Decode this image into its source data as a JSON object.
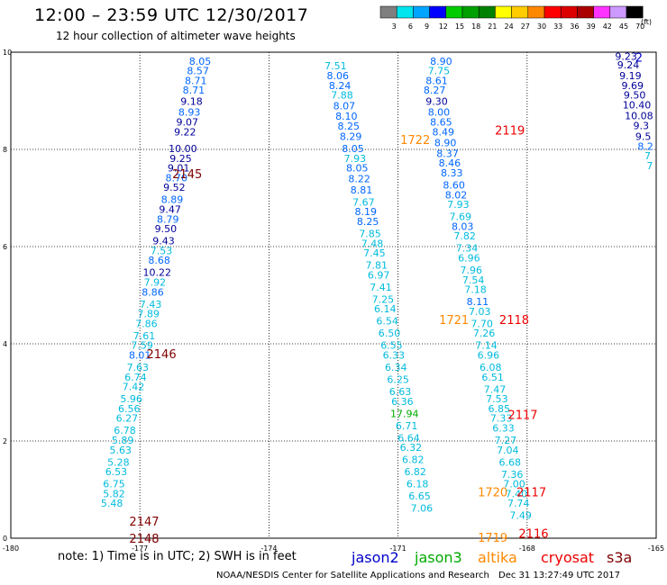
{
  "header": {
    "title": "12:00 – 23:59 UTC 12/30/2017",
    "subtitle": "12 hour collection of altimeter wave heights"
  },
  "color_scale": {
    "units": "(ft)",
    "bins": [
      {
        "label": "3",
        "color": "#7f7f7f"
      },
      {
        "label": "6",
        "color": "#00e5ee"
      },
      {
        "label": "9",
        "color": "#00a5ff"
      },
      {
        "label": "12",
        "color": "#0000ff"
      },
      {
        "label": "15",
        "color": "#00cc00"
      },
      {
        "label": "18",
        "color": "#00a000"
      },
      {
        "label": "21",
        "color": "#008000"
      },
      {
        "label": "24",
        "color": "#ffff00"
      },
      {
        "label": "27",
        "color": "#ffcc00"
      },
      {
        "label": "30",
        "color": "#ff8800"
      },
      {
        "label": "33",
        "color": "#ff0000"
      },
      {
        "label": "36",
        "color": "#dd0000"
      },
      {
        "label": "39",
        "color": "#aa0000"
      },
      {
        "label": "42",
        "color": "#ff33ff"
      },
      {
        "label": "45",
        "color": "#cc99ff"
      },
      {
        "label": "70",
        "color": "#000000"
      }
    ]
  },
  "colors": {
    "jason2": "#0000cc",
    "jason3": "#00aa00",
    "altika": "#ff8800",
    "cryosat": "#ee0000",
    "s3a": "#800000",
    "low": "#00bbdd",
    "mid": "#0066ff",
    "high": "#000099"
  },
  "chart_data": {
    "type": "scatter",
    "title": "12:00 – 23:59 UTC 12/30/2017",
    "subtitle": "12 hour collection of altimeter wave heights",
    "xlim": [
      -180,
      -165
    ],
    "ylim": [
      0,
      10
    ],
    "x_ticks": [
      "-180",
      "-177",
      "-174",
      "-171",
      "-168",
      "-165"
    ],
    "y_ticks": [
      "0",
      "2",
      "4",
      "6",
      "8",
      "10"
    ],
    "grid": true,
    "tracks": [
      {
        "satellite": "s3a",
        "passes": [
          {
            "label": "2145",
            "x": -175.9,
            "y": 7.5
          },
          {
            "label": "2146",
            "x": -176.5,
            "y": 3.8
          },
          {
            "label": "2147",
            "x": -176.9,
            "y": 0.35
          },
          {
            "label": "2148",
            "x": -176.9,
            "y": 0.0
          }
        ],
        "points": [
          {
            "x": -175.6,
            "y": 9.8,
            "v": "8.05"
          },
          {
            "x": -175.65,
            "y": 9.6,
            "v": "8.57"
          },
          {
            "x": -175.7,
            "y": 9.4,
            "v": "8.71"
          },
          {
            "x": -175.75,
            "y": 9.2,
            "v": "8.71"
          },
          {
            "x": -175.8,
            "y": 8.97,
            "v": "9.18"
          },
          {
            "x": -175.85,
            "y": 8.75,
            "v": "8.93"
          },
          {
            "x": -175.9,
            "y": 8.55,
            "v": "9.07"
          },
          {
            "x": -175.95,
            "y": 8.34,
            "v": "9.22"
          },
          {
            "x": -176.0,
            "y": 8.0,
            "v": "10.00"
          },
          {
            "x": -176.05,
            "y": 7.8,
            "v": "9.25"
          },
          {
            "x": -176.1,
            "y": 7.6,
            "v": "9.01"
          },
          {
            "x": -176.15,
            "y": 7.4,
            "v": "8.70"
          },
          {
            "x": -176.2,
            "y": 7.2,
            "v": "9.52"
          },
          {
            "x": -176.25,
            "y": 6.95,
            "v": "8.89"
          },
          {
            "x": -176.3,
            "y": 6.75,
            "v": "9.47"
          },
          {
            "x": -176.35,
            "y": 6.55,
            "v": "8.79"
          },
          {
            "x": -176.4,
            "y": 6.35,
            "v": "9.50"
          },
          {
            "x": -176.45,
            "y": 6.1,
            "v": "9.43"
          },
          {
            "x": -176.5,
            "y": 5.9,
            "v": "7.53"
          },
          {
            "x": -176.55,
            "y": 5.7,
            "v": "8.68"
          },
          {
            "x": -176.6,
            "y": 5.45,
            "v": "10.22"
          },
          {
            "x": -176.65,
            "y": 5.25,
            "v": "7.92"
          },
          {
            "x": -176.7,
            "y": 5.05,
            "v": "8.86"
          },
          {
            "x": -176.75,
            "y": 4.8,
            "v": "7.43"
          },
          {
            "x": -176.8,
            "y": 4.6,
            "v": "7.89"
          },
          {
            "x": -176.85,
            "y": 4.4,
            "v": "7.86"
          },
          {
            "x": -176.9,
            "y": 4.15,
            "v": "7.61"
          },
          {
            "x": -176.95,
            "y": 3.95,
            "v": "7.59"
          },
          {
            "x": -177.0,
            "y": 3.75,
            "v": "8.01"
          },
          {
            "x": -177.05,
            "y": 3.5,
            "v": "7.63"
          },
          {
            "x": -177.1,
            "y": 3.3,
            "v": "6.74"
          },
          {
            "x": -177.15,
            "y": 3.1,
            "v": "7.42"
          },
          {
            "x": -177.2,
            "y": 2.85,
            "v": "5.96"
          },
          {
            "x": -177.25,
            "y": 2.65,
            "v": "6.56"
          },
          {
            "x": -177.3,
            "y": 2.45,
            "v": "6.27"
          },
          {
            "x": -177.35,
            "y": 2.2,
            "v": "6.78"
          },
          {
            "x": -177.4,
            "y": 2.0,
            "v": "5.89"
          },
          {
            "x": -177.45,
            "y": 1.8,
            "v": "5.63"
          },
          {
            "x": -177.5,
            "y": 1.55,
            "v": "5.28"
          },
          {
            "x": -177.55,
            "y": 1.35,
            "v": "6.53"
          },
          {
            "x": -177.6,
            "y": 1.1,
            "v": "6.75"
          },
          {
            "x": -177.6,
            "y": 0.9,
            "v": "5.82"
          },
          {
            "x": -177.65,
            "y": 0.7,
            "v": "5.48"
          }
        ]
      },
      {
        "satellite": "altika",
        "passes": [
          {
            "label": "1722",
            "x": -170.6,
            "y": 8.2
          },
          {
            "label": "1721",
            "x": -169.7,
            "y": 4.5
          },
          {
            "label": "1720",
            "x": -168.8,
            "y": 0.95
          },
          {
            "label": "1719",
            "x": -168.8,
            "y": 0.02
          }
        ],
        "points": [
          {
            "x": -172.45,
            "y": 9.7,
            "v": "7.51"
          },
          {
            "x": -172.4,
            "y": 9.5,
            "v": "8.06"
          },
          {
            "x": -172.35,
            "y": 9.3,
            "v": "8.24"
          },
          {
            "x": -172.3,
            "y": 9.1,
            "v": "7.88"
          },
          {
            "x": -172.25,
            "y": 8.88,
            "v": "8.07"
          },
          {
            "x": -172.2,
            "y": 8.67,
            "v": "8.10"
          },
          {
            "x": -172.15,
            "y": 8.46,
            "v": "8.25"
          },
          {
            "x": -172.1,
            "y": 8.25,
            "v": "8.29"
          },
          {
            "x": -172.05,
            "y": 8.0,
            "v": "8.05"
          },
          {
            "x": -172.0,
            "y": 7.8,
            "v": "7.93"
          },
          {
            "x": -171.95,
            "y": 7.6,
            "v": "8.05"
          },
          {
            "x": -171.9,
            "y": 7.38,
            "v": "8.22"
          },
          {
            "x": -171.85,
            "y": 7.15,
            "v": "8.81"
          },
          {
            "x": -171.8,
            "y": 6.9,
            "v": "7.67"
          },
          {
            "x": -171.75,
            "y": 6.7,
            "v": "8.19"
          },
          {
            "x": -171.7,
            "y": 6.5,
            "v": "8.25"
          },
          {
            "x": -171.65,
            "y": 6.25,
            "v": "7.85"
          },
          {
            "x": -171.6,
            "y": 6.05,
            "v": "7.48"
          },
          {
            "x": -171.55,
            "y": 5.85,
            "v": "7.45"
          },
          {
            "x": -171.5,
            "y": 5.6,
            "v": "7.81"
          },
          {
            "x": -171.45,
            "y": 5.4,
            "v": "6.97"
          },
          {
            "x": -171.4,
            "y": 5.15,
            "v": "7.41"
          },
          {
            "x": -171.35,
            "y": 4.9,
            "v": "7.25"
          },
          {
            "x": -171.3,
            "y": 4.7,
            "v": "6.14"
          },
          {
            "x": -171.25,
            "y": 4.45,
            "v": "6.54"
          },
          {
            "x": -171.2,
            "y": 4.2,
            "v": "6.50"
          },
          {
            "x": -171.15,
            "y": 3.95,
            "v": "6.55"
          },
          {
            "x": -171.1,
            "y": 3.75,
            "v": "6.33"
          },
          {
            "x": -171.05,
            "y": 3.5,
            "v": "6.34"
          },
          {
            "x": -171.0,
            "y": 3.25,
            "v": "6.25"
          },
          {
            "x": -170.95,
            "y": 3.0,
            "v": "6.63"
          },
          {
            "x": -170.9,
            "y": 2.8,
            "v": "6.36"
          },
          {
            "x": -170.85,
            "y": 2.55,
            "v": "17.94"
          },
          {
            "x": -170.8,
            "y": 2.3,
            "v": "6.71"
          },
          {
            "x": -170.75,
            "y": 2.05,
            "v": "6.64"
          },
          {
            "x": -170.7,
            "y": 1.85,
            "v": "6.32"
          },
          {
            "x": -170.65,
            "y": 1.6,
            "v": "6.82"
          },
          {
            "x": -170.6,
            "y": 1.35,
            "v": "6.82"
          },
          {
            "x": -170.55,
            "y": 1.1,
            "v": "6.18"
          },
          {
            "x": -170.5,
            "y": 0.85,
            "v": "6.65"
          },
          {
            "x": -170.45,
            "y": 0.6,
            "v": "7.06"
          }
        ]
      },
      {
        "satellite": "cryosat",
        "passes": [
          {
            "label": "2119",
            "x": -168.4,
            "y": 8.4
          },
          {
            "label": "2118",
            "x": -168.3,
            "y": 4.5
          },
          {
            "label": "2117",
            "x": -168.1,
            "y": 2.55
          },
          {
            "label": "2117",
            "x": -167.9,
            "y": 0.95
          },
          {
            "label": "2116",
            "x": -167.85,
            "y": 0.1
          }
        ],
        "points": [
          {
            "x": -170.0,
            "y": 9.8,
            "v": "8.90"
          },
          {
            "x": -170.05,
            "y": 9.6,
            "v": "7.75"
          },
          {
            "x": -170.1,
            "y": 9.4,
            "v": "8.61"
          },
          {
            "x": -170.15,
            "y": 9.2,
            "v": "8.27"
          },
          {
            "x": -170.1,
            "y": 8.97,
            "v": "9.30"
          },
          {
            "x": -170.05,
            "y": 8.75,
            "v": "8.00"
          },
          {
            "x": -170.0,
            "y": 8.55,
            "v": "8.65"
          },
          {
            "x": -169.95,
            "y": 8.34,
            "v": "8.49"
          },
          {
            "x": -169.9,
            "y": 8.12,
            "v": "8.90"
          },
          {
            "x": -169.85,
            "y": 7.9,
            "v": "8.37"
          },
          {
            "x": -169.8,
            "y": 7.7,
            "v": "8.46"
          },
          {
            "x": -169.75,
            "y": 7.5,
            "v": "8.33"
          },
          {
            "x": -169.7,
            "y": 7.25,
            "v": "8.60"
          },
          {
            "x": -169.65,
            "y": 7.05,
            "v": "8.02"
          },
          {
            "x": -169.6,
            "y": 6.85,
            "v": "7.93"
          },
          {
            "x": -169.55,
            "y": 6.6,
            "v": "7.69"
          },
          {
            "x": -169.5,
            "y": 6.4,
            "v": "8.03"
          },
          {
            "x": -169.45,
            "y": 6.2,
            "v": "7.82"
          },
          {
            "x": -169.4,
            "y": 5.95,
            "v": "7.34"
          },
          {
            "x": -169.35,
            "y": 5.75,
            "v": "6.96"
          },
          {
            "x": -169.3,
            "y": 5.5,
            "v": "7.96"
          },
          {
            "x": -169.25,
            "y": 5.3,
            "v": "7.54"
          },
          {
            "x": -169.2,
            "y": 5.1,
            "v": "7.18"
          },
          {
            "x": -169.15,
            "y": 4.85,
            "v": "8.11"
          },
          {
            "x": -169.1,
            "y": 4.65,
            "v": "7.03"
          },
          {
            "x": -169.05,
            "y": 4.4,
            "v": "7.70"
          },
          {
            "x": -169.0,
            "y": 4.2,
            "v": "7.26"
          },
          {
            "x": -168.95,
            "y": 3.95,
            "v": "7.14"
          },
          {
            "x": -168.9,
            "y": 3.75,
            "v": "6.96"
          },
          {
            "x": -168.85,
            "y": 3.5,
            "v": "6.08"
          },
          {
            "x": -168.8,
            "y": 3.3,
            "v": "6.51"
          },
          {
            "x": -168.75,
            "y": 3.05,
            "v": "7.47"
          },
          {
            "x": -168.7,
            "y": 2.85,
            "v": "7.53"
          },
          {
            "x": -168.65,
            "y": 2.65,
            "v": "6.85"
          },
          {
            "x": -168.6,
            "y": 2.45,
            "v": "7.33"
          },
          {
            "x": -168.55,
            "y": 2.25,
            "v": "6.33"
          },
          {
            "x": -168.5,
            "y": 2.0,
            "v": "7.27"
          },
          {
            "x": -168.45,
            "y": 1.8,
            "v": "7.04"
          },
          {
            "x": -168.4,
            "y": 1.55,
            "v": "6.68"
          },
          {
            "x": -168.35,
            "y": 1.3,
            "v": "7.36"
          },
          {
            "x": -168.3,
            "y": 1.1,
            "v": "7.00"
          },
          {
            "x": -168.25,
            "y": 0.9,
            "v": "7.40"
          },
          {
            "x": -168.2,
            "y": 0.7,
            "v": "7.74"
          },
          {
            "x": -168.15,
            "y": 0.45,
            "v": "7.49"
          }
        ]
      },
      {
        "satellite": "jason2",
        "passes": [
          {
            "label": "2",
            "x": -165.4,
            "y": 9.9
          }
        ],
        "points": [
          {
            "x": -165.7,
            "y": 9.9,
            "v": "9.23"
          },
          {
            "x": -165.65,
            "y": 9.72,
            "v": "9.24"
          },
          {
            "x": -165.6,
            "y": 9.5,
            "v": "9.19"
          },
          {
            "x": -165.55,
            "y": 9.3,
            "v": "9.69"
          },
          {
            "x": -165.5,
            "y": 9.1,
            "v": "9.50"
          },
          {
            "x": -165.45,
            "y": 8.9,
            "v": "10.40"
          },
          {
            "x": -165.4,
            "y": 8.68,
            "v": "10.08"
          },
          {
            "x": -165.35,
            "y": 8.47,
            "v": "9.3"
          },
          {
            "x": -165.3,
            "y": 8.25,
            "v": "9.5"
          },
          {
            "x": -165.25,
            "y": 8.05,
            "v": "8.2"
          },
          {
            "x": -165.2,
            "y": 7.85,
            "v": "7"
          },
          {
            "x": -165.15,
            "y": 7.65,
            "v": "7"
          }
        ]
      }
    ],
    "legend": [
      "jason2",
      "jason3",
      "altika",
      "cryosat",
      "s3a"
    ]
  },
  "footer": {
    "note": "note: 1) Time is in UTC; 2) SWH is in feet",
    "credit": "NOAA/NESDIS Center for Satellite Applications and Research",
    "timestamp": "Dec 31 13:27:49 UTC 2017"
  }
}
